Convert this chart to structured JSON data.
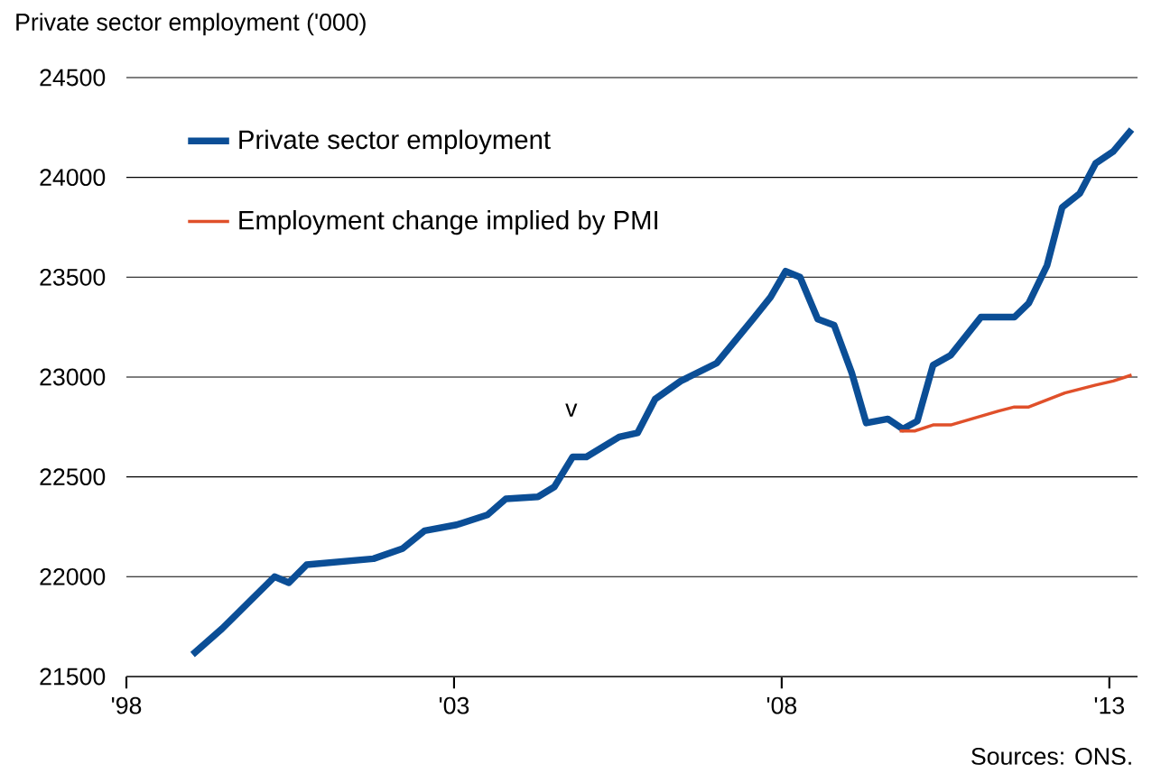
{
  "chart_data": {
    "type": "line",
    "title": "Private sector employment ('000)",
    "xlim": [
      1998,
      2013.43
    ],
    "xticks": [
      {
        "value": 1998,
        "label": "'98"
      },
      {
        "value": 2003,
        "label": "'03"
      },
      {
        "value": 2008,
        "label": "'08"
      },
      {
        "value": 2013,
        "label": "'13"
      }
    ],
    "ylim": [
      21500,
      24500
    ],
    "yticks": [
      21500,
      22000,
      22500,
      23000,
      23500,
      24000,
      24500
    ],
    "grid": "y",
    "legend": "top left",
    "marker": "none",
    "line_style": "solid",
    "series": [
      {
        "name": "Private sector employment",
        "color": "#0b4e96",
        "x": [
          1999.01,
          1999.46,
          2000.26,
          2000.48,
          2000.75,
          2001.77,
          2002.21,
          2002.55,
          2003.04,
          2003.51,
          2003.79,
          2004.28,
          2004.53,
          2004.81,
          2005.02,
          2005.52,
          2005.8,
          2006.07,
          2006.46,
          2007.01,
          2007.56,
          2007.83,
          2008.06,
          2008.28,
          2008.55,
          2008.8,
          2009.07,
          2009.29,
          2009.62,
          2009.85,
          2010.07,
          2010.31,
          2010.58,
          2011.04,
          2011.55,
          2011.77,
          2012.05,
          2012.28,
          2012.55,
          2012.79,
          2013.06,
          2013.34
        ],
        "values": [
          21610,
          21740,
          22000,
          21970,
          22060,
          22090,
          22140,
          22230,
          22260,
          22310,
          22390,
          22400,
          22450,
          22600,
          22600,
          22700,
          22720,
          22890,
          22980,
          23070,
          23290,
          23400,
          23530,
          23500,
          23290,
          23260,
          23020,
          22770,
          22790,
          22740,
          22780,
          23060,
          23110,
          23300,
          23300,
          23370,
          23560,
          23850,
          23920,
          24070,
          24130,
          24240
        ]
      },
      {
        "name": "Employment change implied by PMI",
        "color": "#e0502a",
        "x": [
          2009.8,
          2010.03,
          2010.31,
          2010.58,
          2011.31,
          2011.55,
          2011.77,
          2012.32,
          2012.79,
          2013.06,
          2013.34
        ],
        "values": [
          22730,
          22730,
          22760,
          22760,
          22830,
          22850,
          22850,
          22920,
          22960,
          22980,
          23010
        ]
      }
    ],
    "annotations": [
      "v",
      "Sources: ONS."
    ]
  }
}
